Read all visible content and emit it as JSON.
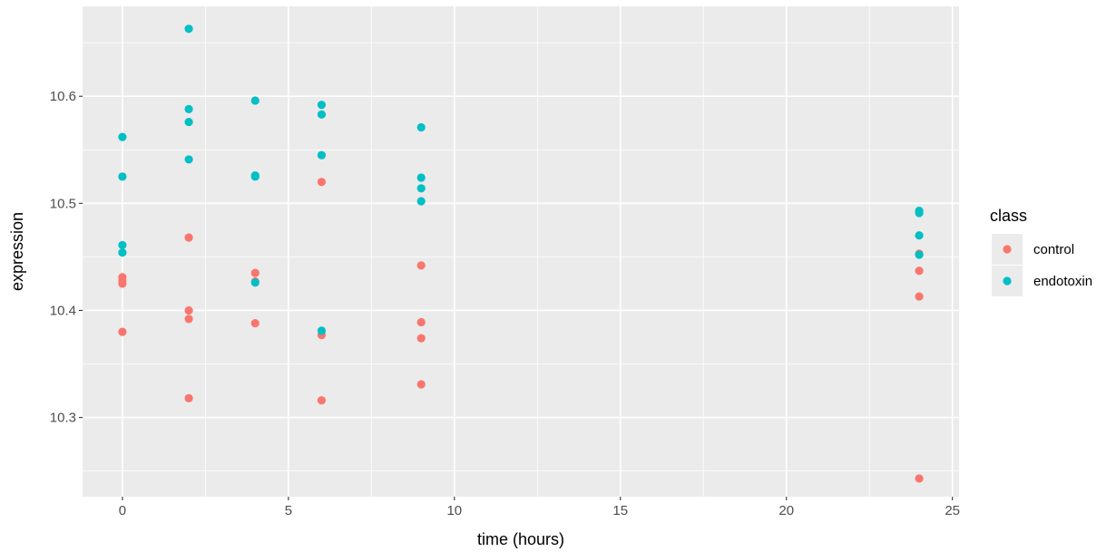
{
  "chart_data": {
    "type": "scatter",
    "xlabel": "time (hours)",
    "ylabel": "expression",
    "xlim": [
      -1.2,
      25.2
    ],
    "ylim": [
      10.226,
      10.684
    ],
    "x_ticks": [
      0,
      5,
      10,
      15,
      20,
      25
    ],
    "y_ticks": [
      10.3,
      10.4,
      10.5,
      10.6
    ],
    "x_tick_labels": [
      "0",
      "5",
      "10",
      "15",
      "20",
      "25"
    ],
    "y_tick_labels": [
      "10.3",
      "10.4",
      "10.5",
      "10.6"
    ],
    "grid": true,
    "legend_position": "right",
    "legend_title": "class",
    "background": "#EBEBEB",
    "series": [
      {
        "name": "control",
        "color": "#F8766D",
        "points": [
          {
            "x": 0,
            "y": 10.431
          },
          {
            "x": 0,
            "y": 10.428
          },
          {
            "x": 0,
            "y": 10.425
          },
          {
            "x": 0,
            "y": 10.38
          },
          {
            "x": 2,
            "y": 10.468
          },
          {
            "x": 2,
            "y": 10.4
          },
          {
            "x": 2,
            "y": 10.392
          },
          {
            "x": 2,
            "y": 10.318
          },
          {
            "x": 4,
            "y": 10.435
          },
          {
            "x": 4,
            "y": 10.427
          },
          {
            "x": 4,
            "y": 10.388
          },
          {
            "x": 6,
            "y": 10.52
          },
          {
            "x": 6,
            "y": 10.377
          },
          {
            "x": 6,
            "y": 10.316
          },
          {
            "x": 9,
            "y": 10.442
          },
          {
            "x": 9,
            "y": 10.389
          },
          {
            "x": 9,
            "y": 10.374
          },
          {
            "x": 9,
            "y": 10.331
          },
          {
            "x": 24,
            "y": 10.453
          },
          {
            "x": 24,
            "y": 10.437
          },
          {
            "x": 24,
            "y": 10.413
          },
          {
            "x": 24,
            "y": 10.243
          }
        ]
      },
      {
        "name": "endotoxin",
        "color": "#00BFC4",
        "points": [
          {
            "x": 0,
            "y": 10.562
          },
          {
            "x": 0,
            "y": 10.525
          },
          {
            "x": 0,
            "y": 10.461
          },
          {
            "x": 0,
            "y": 10.454
          },
          {
            "x": 2,
            "y": 10.663
          },
          {
            "x": 2,
            "y": 10.588
          },
          {
            "x": 2,
            "y": 10.576
          },
          {
            "x": 2,
            "y": 10.541
          },
          {
            "x": 4,
            "y": 10.596
          },
          {
            "x": 4,
            "y": 10.526
          },
          {
            "x": 4,
            "y": 10.525
          },
          {
            "x": 4,
            "y": 10.426
          },
          {
            "x": 6,
            "y": 10.592
          },
          {
            "x": 6,
            "y": 10.583
          },
          {
            "x": 6,
            "y": 10.545
          },
          {
            "x": 6,
            "y": 10.381
          },
          {
            "x": 9,
            "y": 10.571
          },
          {
            "x": 9,
            "y": 10.524
          },
          {
            "x": 9,
            "y": 10.514
          },
          {
            "x": 9,
            "y": 10.502
          },
          {
            "x": 24,
            "y": 10.493
          },
          {
            "x": 24,
            "y": 10.491
          },
          {
            "x": 24,
            "y": 10.47
          },
          {
            "x": 24,
            "y": 10.452
          }
        ]
      }
    ]
  }
}
